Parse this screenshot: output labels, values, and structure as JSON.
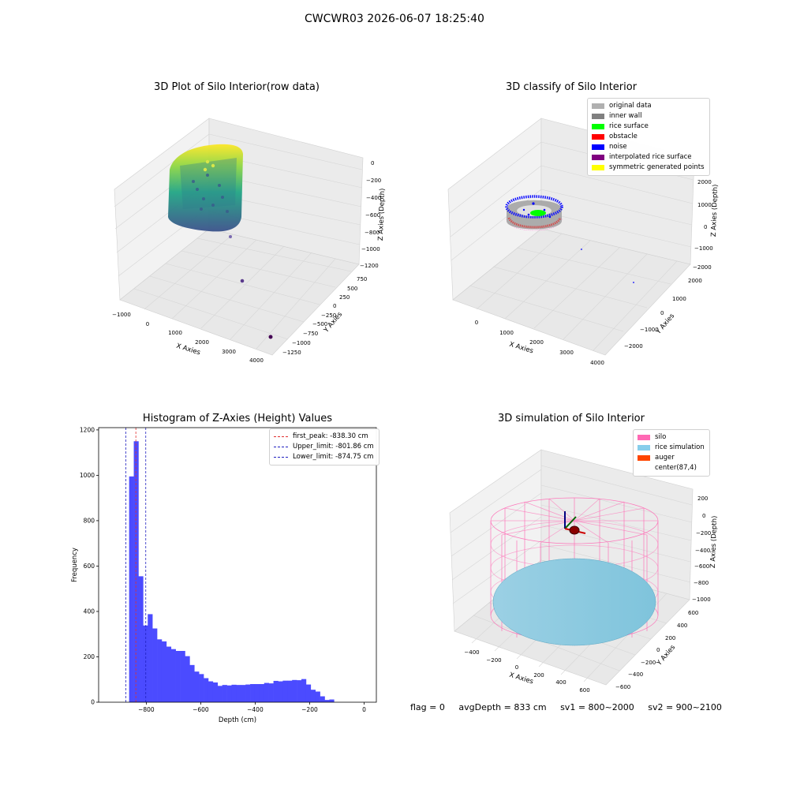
{
  "figure": {
    "title": "CWCWR03 2026-06-07 18:25:40",
    "footer": {
      "flag": "flag = 0",
      "avg_depth": "avgDepth = 833 cm",
      "sv1": "sv1 = 800~2000",
      "sv2": "sv2 = 900~2100"
    }
  },
  "colors": {
    "pane": "#f2f2f2",
    "grid": "#d6d6d6",
    "hist_bar": "#4b4bff",
    "peak_line": "#e03030",
    "limit_line": "#2020c0",
    "silo": "#ff69b4",
    "rice_simulation": "#87ceeb",
    "auger": "#ff4500"
  },
  "plot1": {
    "title": "3D Plot of Silo Interior(row data)",
    "xlabel": "X Axies",
    "ylabel": "Y Axies",
    "zlabel": "Z Axies (Depth)",
    "x_ticks": [
      "−1000",
      "0",
      "1000",
      "2000",
      "3000",
      "4000"
    ],
    "y_ticks": [
      "750",
      "500",
      "250",
      "0",
      "−250",
      "−500",
      "−750",
      "−1000",
      "−1250"
    ],
    "z_ticks": [
      "0",
      "−200",
      "−400",
      "−600",
      "−800",
      "−1000",
      "−1200"
    ]
  },
  "plot2": {
    "title": "3D classify of Silo Interior",
    "xlabel": "X Axies",
    "ylabel": "Y Axies",
    "zlabel": "Z Axies (Depth)",
    "x_ticks": [
      "0",
      "1000",
      "2000",
      "3000",
      "4000"
    ],
    "y_ticks": [
      "2000",
      "1000",
      "0",
      "−1000",
      "−2000"
    ],
    "z_ticks": [
      "2000",
      "1000",
      "0",
      "−1000",
      "−2000"
    ],
    "legend": [
      {
        "label": "original data",
        "color": "#b0b0b0"
      },
      {
        "label": "inner wall",
        "color": "#808080"
      },
      {
        "label": "rice surface",
        "color": "#00ff00"
      },
      {
        "label": "obstacle",
        "color": "#ff0000"
      },
      {
        "label": "noise",
        "color": "#0000ff"
      },
      {
        "label": "interpolated rice surface",
        "color": "#800080"
      },
      {
        "label": "symmetric generated points",
        "color": "#ffff00"
      }
    ]
  },
  "plot4": {
    "title": "3D simulation of Silo Interior",
    "xlabel": "X Axies",
    "ylabel": "Y Axies",
    "zlabel": "Z Axies (Depth)",
    "x_ticks": [
      "−400",
      "−200",
      "0",
      "200",
      "400",
      "600"
    ],
    "y_ticks": [
      "600",
      "400",
      "200",
      "0",
      "−200",
      "−400",
      "−600"
    ],
    "z_ticks": [
      "200",
      "0",
      "−200",
      "−400",
      "−600",
      "−800",
      "−1000"
    ],
    "legend": [
      {
        "label": "silo",
        "color": "#ff69b4"
      },
      {
        "label": "rice simulation",
        "color": "#87ceeb"
      },
      {
        "label": "auger",
        "color": "#ff4500"
      },
      {
        "label": "center(87,4)",
        "color": ""
      }
    ]
  },
  "chart_data": {
    "type": "bar",
    "title": "Histogram of Z-Axies (Height) Values",
    "xlabel": "Depth (cm)",
    "ylabel": "Frequency",
    "xlim": [
      -975,
      45
    ],
    "ylim": [
      0,
      1210
    ],
    "x_ticks": [
      -800,
      -600,
      -400,
      -200,
      0
    ],
    "x_tick_labels": [
      "−800",
      "−600",
      "−400",
      "−200",
      "0"
    ],
    "y_ticks": [
      0,
      200,
      400,
      600,
      800,
      1000,
      1200
    ],
    "bin_start": -863,
    "bin_width": 17.1,
    "values": [
      995,
      1150,
      555,
      338,
      388,
      325,
      277,
      268,
      245,
      234,
      226,
      226,
      203,
      164,
      135,
      124,
      106,
      92,
      87,
      72,
      76,
      74,
      77,
      76,
      76,
      78,
      80,
      80,
      80,
      85,
      83,
      94,
      92,
      95,
      95,
      98,
      97,
      102,
      78,
      55,
      47,
      26,
      10,
      12
    ],
    "vlines": [
      {
        "label": "first_peak: -838.30 cm",
        "x": -838.3,
        "color": "#e03030"
      },
      {
        "label": "Upper_limit: -801.86 cm",
        "x": -801.86,
        "color": "#2020c0"
      },
      {
        "label": "Lower_limit: -874.75 cm",
        "x": -874.75,
        "color": "#2020c0"
      }
    ],
    "legend_position": "top-right"
  }
}
